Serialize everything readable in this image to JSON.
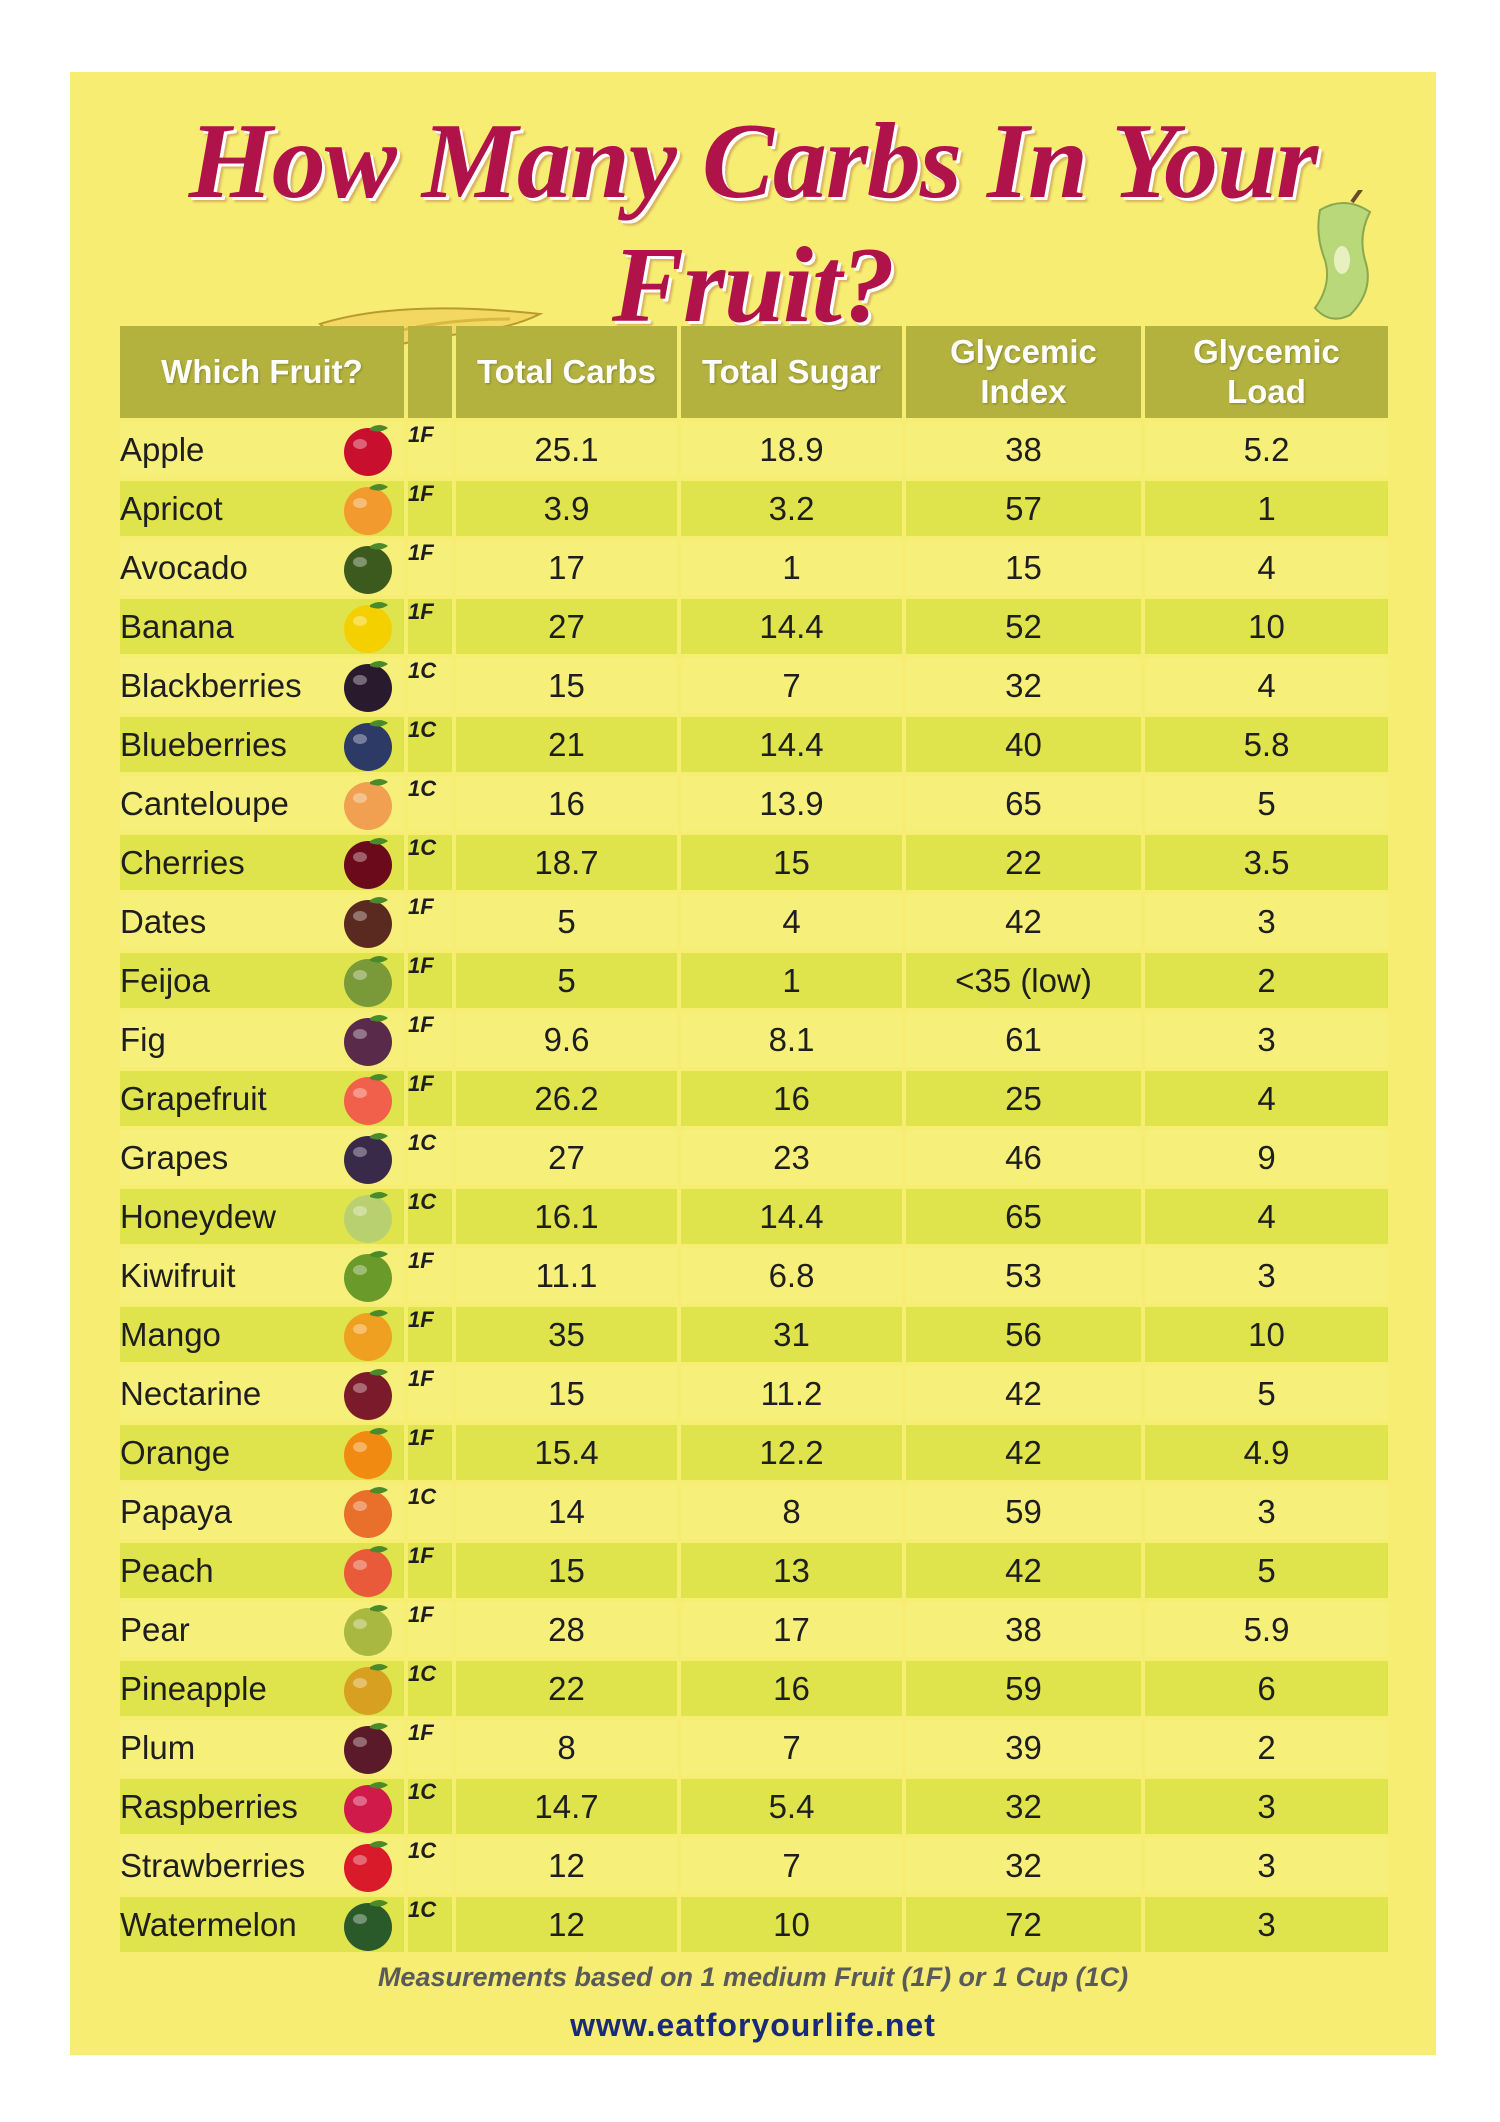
{
  "title": "How Many Carbs In Your Fruit?",
  "headers": {
    "fruit": "Which Fruit?",
    "unit": "",
    "total_carbs": "Total Carbs",
    "total_sugar": "Total Sugar",
    "gi_line1": "Glycemic",
    "gi_line2": "Index",
    "gl_line1": "Glycemic",
    "gl_line2": "Load"
  },
  "rows": [
    {
      "fruit": "Apple",
      "unit": "1F",
      "carbs": "25.1",
      "sugar": "18.9",
      "gi": "38",
      "gl": "5.2",
      "icon": "apple-icon",
      "color": "#c8102e"
    },
    {
      "fruit": "Apricot",
      "unit": "1F",
      "carbs": "3.9",
      "sugar": "3.2",
      "gi": "57",
      "gl": "1",
      "icon": "apricot-icon",
      "color": "#f29a2e"
    },
    {
      "fruit": "Avocado",
      "unit": "1F",
      "carbs": "17",
      "sugar": "1",
      "gi": "15",
      "gl": "4",
      "icon": "avocado-icon",
      "color": "#3c5a1e"
    },
    {
      "fruit": "Banana",
      "unit": "1F",
      "carbs": "27",
      "sugar": "14.4",
      "gi": "52",
      "gl": "10",
      "icon": "banana-icon",
      "color": "#f5d000"
    },
    {
      "fruit": "Blackberries",
      "unit": "1C",
      "carbs": "15",
      "sugar": "7",
      "gi": "32",
      "gl": "4",
      "icon": "blackberries-icon",
      "color": "#2a1a2e"
    },
    {
      "fruit": "Blueberries",
      "unit": "1C",
      "carbs": "21",
      "sugar": "14.4",
      "gi": "40",
      "gl": "5.8",
      "icon": "blueberries-icon",
      "color": "#2e3a66"
    },
    {
      "fruit": "Canteloupe",
      "unit": "1C",
      "carbs": "16",
      "sugar": "13.9",
      "gi": "65",
      "gl": "5",
      "icon": "canteloupe-icon",
      "color": "#f0a050"
    },
    {
      "fruit": "Cherries",
      "unit": "1C",
      "carbs": "18.7",
      "sugar": "15",
      "gi": "22",
      "gl": "3.5",
      "icon": "cherries-icon",
      "color": "#6a0a1a"
    },
    {
      "fruit": "Dates",
      "unit": "1F",
      "carbs": "5",
      "sugar": "4",
      "gi": "42",
      "gl": "3",
      "icon": "dates-icon",
      "color": "#5a2a20"
    },
    {
      "fruit": "Feijoa",
      "unit": "1F",
      "carbs": "5",
      "sugar": "1",
      "gi": "<35 (low)",
      "gl": "2",
      "icon": "feijoa-icon",
      "color": "#7a9a3a"
    },
    {
      "fruit": "Fig",
      "unit": "1F",
      "carbs": "9.6",
      "sugar": "8.1",
      "gi": "61",
      "gl": "3",
      "icon": "fig-icon",
      "color": "#5a2a4a"
    },
    {
      "fruit": "Grapefruit",
      "unit": "1F",
      "carbs": "26.2",
      "sugar": "16",
      "gi": "25",
      "gl": "4",
      "icon": "grapefruit-icon",
      "color": "#f0604a"
    },
    {
      "fruit": "Grapes",
      "unit": "1C",
      "carbs": "27",
      "sugar": "23",
      "gi": "46",
      "gl": "9",
      "icon": "grapes-icon",
      "color": "#3a2a4a"
    },
    {
      "fruit": "Honeydew",
      "unit": "1C",
      "carbs": "16.1",
      "sugar": "14.4",
      "gi": "65",
      "gl": "4",
      "icon": "honeydew-icon",
      "color": "#b8d070"
    },
    {
      "fruit": "Kiwifruit",
      "unit": "1F",
      "carbs": "11.1",
      "sugar": "6.8",
      "gi": "53",
      "gl": "3",
      "icon": "kiwifruit-icon",
      "color": "#6a9a2a"
    },
    {
      "fruit": "Mango",
      "unit": "1F",
      "carbs": "35",
      "sugar": "31",
      "gi": "56",
      "gl": "10",
      "icon": "mango-icon",
      "color": "#f0a020"
    },
    {
      "fruit": "Nectarine",
      "unit": "1F",
      "carbs": "15",
      "sugar": "11.2",
      "gi": "42",
      "gl": "5",
      "icon": "nectarine-icon",
      "color": "#7a1a2a"
    },
    {
      "fruit": "Orange",
      "unit": "1F",
      "carbs": "15.4",
      "sugar": "12.2",
      "gi": "42",
      "gl": "4.9",
      "icon": "orange-icon",
      "color": "#f08a10"
    },
    {
      "fruit": "Papaya",
      "unit": "1C",
      "carbs": "14",
      "sugar": "8",
      "gi": "59",
      "gl": "3",
      "icon": "papaya-icon",
      "color": "#e8702a"
    },
    {
      "fruit": "Peach",
      "unit": "1F",
      "carbs": "15",
      "sugar": "13",
      "gi": "42",
      "gl": "5",
      "icon": "peach-icon",
      "color": "#e85a3a"
    },
    {
      "fruit": "Pear",
      "unit": "1F",
      "carbs": "28",
      "sugar": "17",
      "gi": "38",
      "gl": "5.9",
      "icon": "pear-icon",
      "color": "#a8b840"
    },
    {
      "fruit": "Pineapple",
      "unit": "1C",
      "carbs": "22",
      "sugar": "16",
      "gi": "59",
      "gl": "6",
      "icon": "pineapple-icon",
      "color": "#d8a020"
    },
    {
      "fruit": "Plum",
      "unit": "1F",
      "carbs": "8",
      "sugar": "7",
      "gi": "39",
      "gl": "2",
      "icon": "plum-icon",
      "color": "#5a1a2a"
    },
    {
      "fruit": "Raspberries",
      "unit": "1C",
      "carbs": "14.7",
      "sugar": "5.4",
      "gi": "32",
      "gl": "3",
      "icon": "raspberries-icon",
      "color": "#d01a4a"
    },
    {
      "fruit": "Strawberries",
      "unit": "1C",
      "carbs": "12",
      "sugar": "7",
      "gi": "32",
      "gl": "3",
      "icon": "strawberries-icon",
      "color": "#d81a2a"
    },
    {
      "fruit": "Watermelon",
      "unit": "1C",
      "carbs": "12",
      "sugar": "10",
      "gi": "72",
      "gl": "3",
      "icon": "watermelon-icon",
      "color": "#2a5a2a"
    }
  ],
  "footnote": "Measurements based on 1 medium Fruit (1F) or 1 Cup (1C)",
  "website": "www.eatforyourlife.net",
  "colors": {
    "background": "#f7ed72",
    "header": "#b4b23e",
    "row_light": "#f6f07a",
    "row_dark": "#dfe34c",
    "title": "#b0124a",
    "website": "#1a2a7a"
  }
}
